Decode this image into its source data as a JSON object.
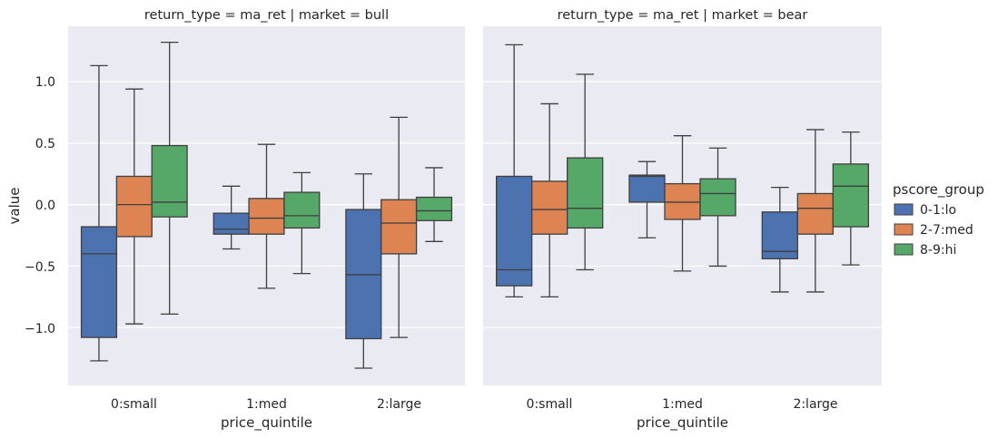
{
  "chart_data": {
    "type": "box",
    "ylabel": "value",
    "xlabel": "price_quintile",
    "ylim": [
      -1.47,
      1.45
    ],
    "y_ticks": [
      "1.0",
      "0.5",
      "0.0",
      "−0.5",
      "−1.0"
    ],
    "y_tick_values": [
      1.0,
      0.5,
      0.0,
      -0.5,
      -1.0
    ],
    "grid": true,
    "categories": [
      "0:small",
      "1:med",
      "2:large"
    ],
    "legend": {
      "title": "pscore_group",
      "placement": "right",
      "entries": [
        {
          "label": "0-1:lo",
          "color": "#4c72b0"
        },
        {
          "label": "2-7:med",
          "color": "#dd8452"
        },
        {
          "label": "8-9:hi",
          "color": "#55a868"
        }
      ]
    },
    "facets": [
      {
        "title": "return_type = ma_ret | market = bull",
        "boxes": [
          [
            {
              "min": -1.27,
              "q1": -1.08,
              "median": -0.4,
              "q3": -0.18,
              "max": 1.13
            },
            {
              "min": -0.97,
              "q1": -0.26,
              "median": 0.0,
              "q3": 0.23,
              "max": 0.94
            },
            {
              "min": -0.89,
              "q1": -0.1,
              "median": 0.02,
              "q3": 0.48,
              "max": 1.32
            }
          ],
          [
            {
              "min": -0.36,
              "q1": -0.24,
              "median": -0.2,
              "q3": -0.07,
              "max": 0.15
            },
            {
              "min": -0.68,
              "q1": -0.24,
              "median": -0.11,
              "q3": 0.05,
              "max": 0.49
            },
            {
              "min": -0.56,
              "q1": -0.19,
              "median": -0.09,
              "q3": 0.1,
              "max": 0.26
            }
          ],
          [
            {
              "min": -1.33,
              "q1": -1.09,
              "median": -0.57,
              "q3": -0.04,
              "max": 0.25
            },
            {
              "min": -1.08,
              "q1": -0.4,
              "median": -0.15,
              "q3": 0.04,
              "max": 0.71
            },
            {
              "min": -0.3,
              "q1": -0.13,
              "median": -0.05,
              "q3": 0.06,
              "max": 0.3
            }
          ]
        ]
      },
      {
        "title": "return_type = ma_ret | market = bear",
        "boxes": [
          [
            {
              "min": -0.75,
              "q1": -0.66,
              "median": -0.53,
              "q3": 0.23,
              "max": 1.3
            },
            {
              "min": -0.75,
              "q1": -0.24,
              "median": -0.04,
              "q3": 0.19,
              "max": 0.82
            },
            {
              "min": -0.53,
              "q1": -0.19,
              "median": -0.03,
              "q3": 0.38,
              "max": 1.06
            }
          ],
          [
            {
              "min": -0.27,
              "q1": 0.02,
              "median": 0.23,
              "q3": 0.24,
              "max": 0.35
            },
            {
              "min": -0.54,
              "q1": -0.12,
              "median": 0.02,
              "q3": 0.17,
              "max": 0.56
            },
            {
              "min": -0.5,
              "q1": -0.09,
              "median": 0.09,
              "q3": 0.21,
              "max": 0.46
            }
          ],
          [
            {
              "min": -0.71,
              "q1": -0.44,
              "median": -0.38,
              "q3": -0.06,
              "max": 0.14
            },
            {
              "min": -0.71,
              "q1": -0.24,
              "median": -0.03,
              "q3": 0.09,
              "max": 0.61
            },
            {
              "min": -0.49,
              "q1": -0.18,
              "median": 0.15,
              "q3": 0.33,
              "max": 0.59
            }
          ]
        ]
      }
    ]
  }
}
